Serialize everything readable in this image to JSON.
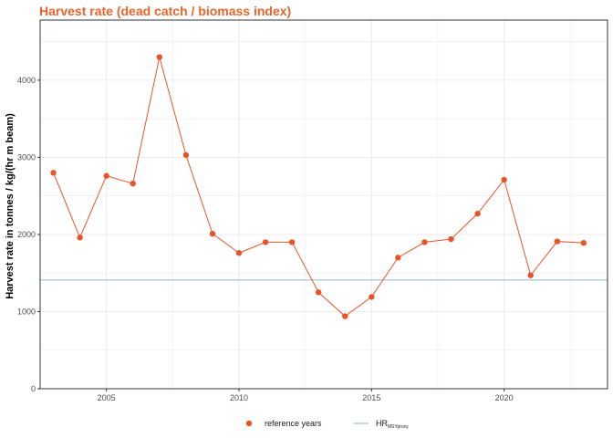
{
  "chart_data": {
    "type": "line",
    "title": "Harvest rate (dead catch / biomass index)",
    "ylabel": "Harvest rate in tonnes / kg/(hr m beam)",
    "xlabel": "",
    "xlim": [
      2002.5,
      2023.9
    ],
    "ylim": [
      0,
      4780
    ],
    "xticks": [
      2005,
      2010,
      2015,
      2020
    ],
    "yticks": [
      0,
      1000,
      2000,
      3000,
      4000
    ],
    "grid": true,
    "series": [
      {
        "name": "reference years",
        "x": [
          2003,
          2004,
          2005,
          2006,
          2007,
          2008,
          2009,
          2010,
          2011,
          2012,
          2013,
          2014,
          2015,
          2016,
          2017,
          2018,
          2019,
          2020,
          2021,
          2022,
          2023
        ],
        "y": [
          2800,
          1960,
          2760,
          2660,
          4300,
          3030,
          2010,
          1760,
          1900,
          1900,
          1250,
          940,
          1190,
          1700,
          1900,
          1940,
          2270,
          2710,
          1470,
          1910,
          1890
        ]
      }
    ],
    "reference_line": {
      "value": 1410,
      "label_main": "HR",
      "label_sub": "MSYproxy"
    },
    "legend_position": "bottom",
    "colors": {
      "series": "#e8542a",
      "title": "#e8642a",
      "reference_line": "#8fb4d1",
      "grid": "#ebebeb",
      "axis": "#333333"
    }
  }
}
